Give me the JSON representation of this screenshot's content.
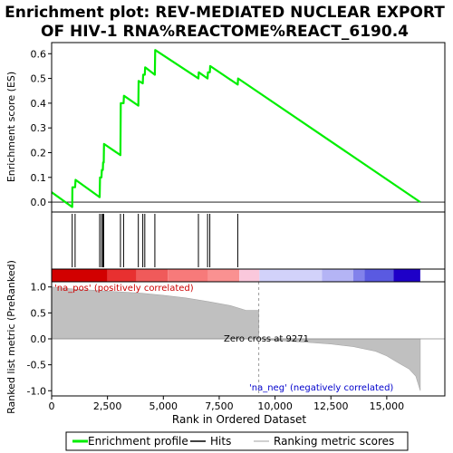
{
  "chart_data": {
    "type": "line",
    "title": "Enrichment plot: REV‐MEDIATED NUCLEAR EXPORT\nOF HIV‐1 RNA%REACTOME%REACT_6190.4",
    "title_lines": [
      "Enrichment plot: REV‐MEDIATED NUCLEAR EXPORT",
      "OF HIV‐1 RNA%REACTOME%REACT_6190.4"
    ],
    "xlabel": "Rank in Ordered Dataset",
    "ylabel_top": "Enrichment score (ES)",
    "ylabel_bottom": "Ranked list metric (PreRanked)",
    "xlim": [
      0,
      17600
    ],
    "x_ticks": [
      0,
      2500,
      5000,
      7500,
      10000,
      12500,
      15000
    ],
    "x_tick_labels": [
      "0",
      "2,500",
      "5,000",
      "7,500",
      "10,000",
      "12,500",
      "15,000"
    ],
    "es_ylim": [
      -0.04,
      0.645
    ],
    "es_ticks": [
      0.0,
      0.1,
      0.2,
      0.3,
      0.4,
      0.5,
      0.6
    ],
    "es_tick_labels": [
      "0.0",
      "0.1",
      "0.2",
      "0.3",
      "0.4",
      "0.5",
      "0.6"
    ],
    "metric_ylim": [
      -1.1,
      1.1
    ],
    "metric_ticks": [
      1.0,
      0.5,
      0.0,
      -0.5,
      -1.0
    ],
    "metric_tick_labels": [
      "1.0",
      "0.5",
      "0.0",
      "-0.5",
      "-1.0"
    ],
    "enrichment_profile": {
      "x": [
        0,
        920,
        930,
        1050,
        1070,
        2150,
        2165,
        2230,
        2245,
        2290,
        2305,
        2330,
        2345,
        3080,
        3095,
        3220,
        3235,
        3880,
        3895,
        4080,
        4095,
        4170,
        4185,
        4620,
        4635,
        6570,
        6585,
        6980,
        6995,
        7080,
        7095,
        8330,
        8345,
        16500
      ],
      "y": [
        0.04,
        -0.02,
        0.06,
        0.06,
        0.09,
        0.02,
        0.1,
        0.1,
        0.13,
        0.13,
        0.16,
        0.16,
        0.235,
        0.19,
        0.4,
        0.4,
        0.43,
        0.39,
        0.49,
        0.48,
        0.515,
        0.515,
        0.545,
        0.515,
        0.615,
        0.5,
        0.525,
        0.5,
        0.525,
        0.525,
        0.55,
        0.475,
        0.5,
        0.0
      ]
    },
    "hits": [
      920,
      1050,
      2150,
      2230,
      2290,
      2330,
      3080,
      3220,
      3880,
      4080,
      4170,
      4620,
      6570,
      6980,
      7080,
      8330
    ],
    "ranked_metric": {
      "x": [
        0,
        1000,
        2500,
        4000,
        5000,
        6000,
        7000,
        8000,
        8700,
        9271,
        10000,
        11500,
        12500,
        13500,
        14500,
        15000,
        15500,
        16000,
        16300,
        16500
      ],
      "y": [
        1.0,
        0.96,
        0.92,
        0.88,
        0.84,
        0.79,
        0.72,
        0.64,
        0.55,
        0.0,
        -0.03,
        -0.07,
        -0.1,
        -0.15,
        -0.24,
        -0.33,
        -0.46,
        -0.58,
        -0.72,
        -1.0
      ]
    },
    "zero_cross": 9271,
    "zero_cross_label": "Zero cross at 9271",
    "pos_label": "'na_pos' (positively correlated)",
    "neg_label": "'na_neg' (negatively correlated)",
    "heat_bar": [
      {
        "from": 0,
        "to": 2500,
        "color": "#d20000"
      },
      {
        "from": 2500,
        "to": 3800,
        "color": "#e83030"
      },
      {
        "from": 3800,
        "to": 5200,
        "color": "#f05a5a"
      },
      {
        "from": 5200,
        "to": 7000,
        "color": "#f77a7a"
      },
      {
        "from": 7000,
        "to": 8400,
        "color": "#fa9191"
      },
      {
        "from": 8400,
        "to": 9300,
        "color": "#fac8dc"
      },
      {
        "from": 9300,
        "to": 12100,
        "color": "#d2d2fa"
      },
      {
        "from": 12100,
        "to": 13500,
        "color": "#b4b4f5"
      },
      {
        "from": 13500,
        "to": 14000,
        "color": "#8282eb"
      },
      {
        "from": 14000,
        "to": 15300,
        "color": "#5a5ae1"
      },
      {
        "from": 15300,
        "to": 16500,
        "color": "#1e00c8"
      }
    ],
    "legend": [
      {
        "label": "Enrichment profile",
        "color": "#00ee00",
        "style": "line"
      },
      {
        "label": "Hits",
        "color": "#000000",
        "style": "line"
      },
      {
        "label": "Ranking metric scores",
        "color": "#c0c0c0",
        "style": "line"
      }
    ],
    "colors": {
      "profile": "#00ee00",
      "hits": "#000000",
      "metric_fill": "#c0c0c0",
      "pos_text": "#cc0000",
      "neg_text": "#0000cc",
      "frame": "#000000"
    }
  }
}
